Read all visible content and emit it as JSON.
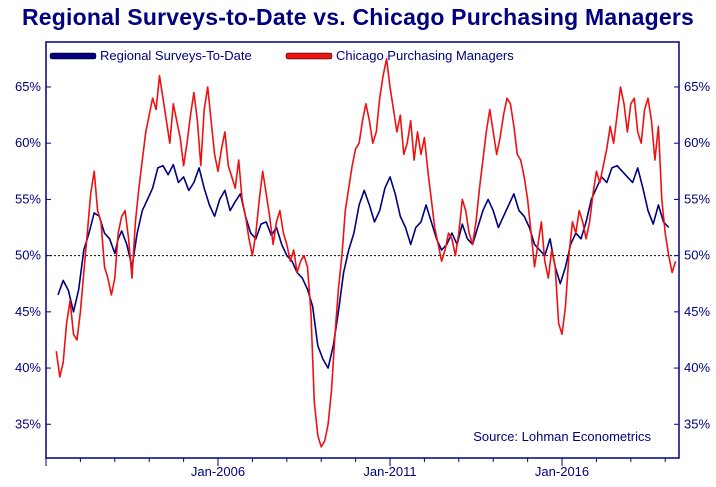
{
  "chart_data": {
    "type": "line",
    "title": "Regional Surveys-to-Date vs. Chicago Purchasing Managers",
    "source": "Source: Lohman Econometrics",
    "x_range": [
      2001.0,
      2019.4
    ],
    "ylim": [
      32,
      69
    ],
    "y_ticks": [
      35,
      40,
      45,
      50,
      55,
      60,
      65
    ],
    "y_tick_labels": [
      "35%",
      "40%",
      "45%",
      "50%",
      "55%",
      "60%",
      "65%"
    ],
    "x_ticks": [
      2006,
      2011,
      2016
    ],
    "x_tick_labels": [
      "Jan-2006",
      "Jan-2011",
      "Jan-2016"
    ],
    "reference_line": 50,
    "legend_position": "top-left",
    "colors": {
      "regional": "#000080",
      "chicago": "#ee1111",
      "axis": "#000080"
    },
    "series": [
      {
        "name": "Regional Surveys-To-Date",
        "color": "#000080",
        "points": [
          [
            2001.35,
            46.5
          ],
          [
            2001.5,
            47.8
          ],
          [
            2001.65,
            46.9
          ],
          [
            2001.8,
            45
          ],
          [
            2001.95,
            47
          ],
          [
            2002.1,
            50.5
          ],
          [
            2002.25,
            52
          ],
          [
            2002.4,
            53.8
          ],
          [
            2002.55,
            53.5
          ],
          [
            2002.7,
            52
          ],
          [
            2002.85,
            51.5
          ],
          [
            2003.0,
            50.2
          ],
          [
            2003.1,
            51.5
          ],
          [
            2003.2,
            52.2
          ],
          [
            2003.35,
            51
          ],
          [
            2003.5,
            49
          ],
          [
            2003.65,
            52
          ],
          [
            2003.8,
            54
          ],
          [
            2003.95,
            55
          ],
          [
            2004.1,
            56
          ],
          [
            2004.25,
            57.8
          ],
          [
            2004.4,
            58
          ],
          [
            2004.55,
            57.2
          ],
          [
            2004.7,
            58.1
          ],
          [
            2004.85,
            56.5
          ],
          [
            2005.0,
            57
          ],
          [
            2005.15,
            55.8
          ],
          [
            2005.3,
            56.5
          ],
          [
            2005.45,
            57.8
          ],
          [
            2005.6,
            56
          ],
          [
            2005.75,
            54.5
          ],
          [
            2005.9,
            53.5
          ],
          [
            2006.05,
            55
          ],
          [
            2006.2,
            55.8
          ],
          [
            2006.35,
            54
          ],
          [
            2006.5,
            54.8
          ],
          [
            2006.65,
            55.5
          ],
          [
            2006.8,
            53.5
          ],
          [
            2006.95,
            52
          ],
          [
            2007.1,
            51.5
          ],
          [
            2007.25,
            52.8
          ],
          [
            2007.4,
            53
          ],
          [
            2007.55,
            51.8
          ],
          [
            2007.7,
            52.5
          ],
          [
            2007.85,
            51
          ],
          [
            2008.0,
            50
          ],
          [
            2008.15,
            49.5
          ],
          [
            2008.3,
            48.5
          ],
          [
            2008.45,
            48
          ],
          [
            2008.6,
            47
          ],
          [
            2008.75,
            45.5
          ],
          [
            2008.9,
            42
          ],
          [
            2009.05,
            40.8
          ],
          [
            2009.2,
            40
          ],
          [
            2009.35,
            42
          ],
          [
            2009.5,
            45
          ],
          [
            2009.65,
            48.5
          ],
          [
            2009.8,
            50.5
          ],
          [
            2009.95,
            52
          ],
          [
            2010.1,
            54.5
          ],
          [
            2010.25,
            55.8
          ],
          [
            2010.4,
            54.5
          ],
          [
            2010.55,
            53
          ],
          [
            2010.7,
            54
          ],
          [
            2010.85,
            56
          ],
          [
            2011.0,
            57
          ],
          [
            2011.15,
            55.5
          ],
          [
            2011.3,
            53.5
          ],
          [
            2011.45,
            52.5
          ],
          [
            2011.6,
            51
          ],
          [
            2011.75,
            52.5
          ],
          [
            2011.9,
            53
          ],
          [
            2012.05,
            54.5
          ],
          [
            2012.2,
            53
          ],
          [
            2012.35,
            51.5
          ],
          [
            2012.5,
            50.5
          ],
          [
            2012.65,
            51
          ],
          [
            2012.8,
            52
          ],
          [
            2012.95,
            51
          ],
          [
            2013.1,
            52.8
          ],
          [
            2013.25,
            51.5
          ],
          [
            2013.4,
            51
          ],
          [
            2013.55,
            52.5
          ],
          [
            2013.7,
            54
          ],
          [
            2013.85,
            55
          ],
          [
            2014.0,
            54
          ],
          [
            2014.15,
            52.5
          ],
          [
            2014.3,
            53.5
          ],
          [
            2014.45,
            54.5
          ],
          [
            2014.6,
            55.5
          ],
          [
            2014.75,
            54
          ],
          [
            2014.9,
            53.5
          ],
          [
            2015.05,
            52.5
          ],
          [
            2015.2,
            51
          ],
          [
            2015.35,
            50.5
          ],
          [
            2015.5,
            50
          ],
          [
            2015.65,
            51.5
          ],
          [
            2015.8,
            49
          ],
          [
            2015.95,
            47.5
          ],
          [
            2016.1,
            49
          ],
          [
            2016.25,
            51
          ],
          [
            2016.4,
            52
          ],
          [
            2016.55,
            51.5
          ],
          [
            2016.7,
            53
          ],
          [
            2016.85,
            55
          ],
          [
            2017.0,
            56
          ],
          [
            2017.15,
            57
          ],
          [
            2017.3,
            56.5
          ],
          [
            2017.45,
            57.8
          ],
          [
            2017.6,
            58
          ],
          [
            2017.75,
            57.5
          ],
          [
            2017.9,
            57
          ],
          [
            2018.05,
            56.5
          ],
          [
            2018.2,
            57.8
          ],
          [
            2018.35,
            56
          ],
          [
            2018.5,
            54
          ],
          [
            2018.65,
            52.8
          ],
          [
            2018.8,
            54.5
          ],
          [
            2018.95,
            53
          ],
          [
            2019.1,
            52.5
          ]
        ]
      },
      {
        "name": "Chicago Purchasing Managers",
        "color": "#ee1111",
        "points": [
          [
            2001.3,
            41.5
          ],
          [
            2001.4,
            39.2
          ],
          [
            2001.5,
            40.5
          ],
          [
            2001.6,
            44
          ],
          [
            2001.7,
            46
          ],
          [
            2001.8,
            43
          ],
          [
            2001.9,
            42.5
          ],
          [
            2002.0,
            45
          ],
          [
            2002.1,
            48.5
          ],
          [
            2002.2,
            52
          ],
          [
            2002.3,
            55.5
          ],
          [
            2002.4,
            57.5
          ],
          [
            2002.5,
            54
          ],
          [
            2002.6,
            53
          ],
          [
            2002.7,
            49
          ],
          [
            2002.8,
            48
          ],
          [
            2002.9,
            46.5
          ],
          [
            2003.0,
            48
          ],
          [
            2003.1,
            52
          ],
          [
            2003.2,
            53.5
          ],
          [
            2003.3,
            54
          ],
          [
            2003.4,
            51.5
          ],
          [
            2003.5,
            48
          ],
          [
            2003.6,
            53
          ],
          [
            2003.7,
            56
          ],
          [
            2003.8,
            58.5
          ],
          [
            2003.9,
            61
          ],
          [
            2004.0,
            62.5
          ],
          [
            2004.1,
            64
          ],
          [
            2004.2,
            63
          ],
          [
            2004.3,
            66
          ],
          [
            2004.4,
            64
          ],
          [
            2004.5,
            62
          ],
          [
            2004.6,
            60
          ],
          [
            2004.7,
            63.5
          ],
          [
            2004.8,
            62
          ],
          [
            2004.9,
            60.5
          ],
          [
            2005.0,
            58
          ],
          [
            2005.1,
            60
          ],
          [
            2005.2,
            62.5
          ],
          [
            2005.3,
            64.5
          ],
          [
            2005.4,
            62
          ],
          [
            2005.5,
            58
          ],
          [
            2005.6,
            63
          ],
          [
            2005.7,
            65
          ],
          [
            2005.8,
            62
          ],
          [
            2005.9,
            59
          ],
          [
            2006.0,
            57.5
          ],
          [
            2006.1,
            59.5
          ],
          [
            2006.2,
            61
          ],
          [
            2006.3,
            58
          ],
          [
            2006.4,
            57
          ],
          [
            2006.5,
            56
          ],
          [
            2006.6,
            58.5
          ],
          [
            2006.7,
            55
          ],
          [
            2006.8,
            53.5
          ],
          [
            2006.9,
            51.5
          ],
          [
            2007.0,
            50
          ],
          [
            2007.1,
            52
          ],
          [
            2007.2,
            55
          ],
          [
            2007.3,
            57.5
          ],
          [
            2007.4,
            55.5
          ],
          [
            2007.5,
            53.5
          ],
          [
            2007.6,
            51
          ],
          [
            2007.7,
            53
          ],
          [
            2007.8,
            54
          ],
          [
            2007.9,
            52
          ],
          [
            2008.0,
            51
          ],
          [
            2008.1,
            49.5
          ],
          [
            2008.2,
            50.5
          ],
          [
            2008.3,
            48.5
          ],
          [
            2008.4,
            49.5
          ],
          [
            2008.5,
            50
          ],
          [
            2008.6,
            49
          ],
          [
            2008.7,
            45
          ],
          [
            2008.8,
            37
          ],
          [
            2008.9,
            34
          ],
          [
            2009.0,
            33
          ],
          [
            2009.1,
            33.5
          ],
          [
            2009.2,
            35
          ],
          [
            2009.3,
            38
          ],
          [
            2009.4,
            43
          ],
          [
            2009.5,
            47
          ],
          [
            2009.6,
            50
          ],
          [
            2009.7,
            54
          ],
          [
            2009.8,
            56
          ],
          [
            2009.9,
            58
          ],
          [
            2010.0,
            59.5
          ],
          [
            2010.1,
            60
          ],
          [
            2010.2,
            62
          ],
          [
            2010.3,
            63.5
          ],
          [
            2010.4,
            62
          ],
          [
            2010.5,
            60
          ],
          [
            2010.6,
            61
          ],
          [
            2010.7,
            64
          ],
          [
            2010.8,
            66
          ],
          [
            2010.9,
            67.5
          ],
          [
            2011.0,
            65
          ],
          [
            2011.1,
            63
          ],
          [
            2011.2,
            61
          ],
          [
            2011.3,
            62.5
          ],
          [
            2011.4,
            59
          ],
          [
            2011.5,
            60
          ],
          [
            2011.6,
            62
          ],
          [
            2011.7,
            58.5
          ],
          [
            2011.8,
            61
          ],
          [
            2011.9,
            59
          ],
          [
            2012.0,
            60.5
          ],
          [
            2012.1,
            57.5
          ],
          [
            2012.2,
            55
          ],
          [
            2012.3,
            52.5
          ],
          [
            2012.4,
            51
          ],
          [
            2012.5,
            49.5
          ],
          [
            2012.6,
            50.5
          ],
          [
            2012.7,
            52
          ],
          [
            2012.8,
            51.5
          ],
          [
            2012.9,
            50
          ],
          [
            2013.0,
            52
          ],
          [
            2013.1,
            55
          ],
          [
            2013.2,
            54
          ],
          [
            2013.3,
            52
          ],
          [
            2013.4,
            51
          ],
          [
            2013.5,
            53
          ],
          [
            2013.6,
            56
          ],
          [
            2013.7,
            58.5
          ],
          [
            2013.8,
            61
          ],
          [
            2013.9,
            63
          ],
          [
            2014.0,
            61
          ],
          [
            2014.1,
            59
          ],
          [
            2014.2,
            60.5
          ],
          [
            2014.3,
            62.5
          ],
          [
            2014.4,
            64
          ],
          [
            2014.5,
            63.5
          ],
          [
            2014.6,
            61.5
          ],
          [
            2014.7,
            59
          ],
          [
            2014.8,
            58.5
          ],
          [
            2014.9,
            57
          ],
          [
            2015.0,
            55
          ],
          [
            2015.1,
            52
          ],
          [
            2015.2,
            49
          ],
          [
            2015.3,
            51
          ],
          [
            2015.4,
            53
          ],
          [
            2015.5,
            49.5
          ],
          [
            2015.6,
            48
          ],
          [
            2015.7,
            50.5
          ],
          [
            2015.8,
            49
          ],
          [
            2015.9,
            44
          ],
          [
            2016.0,
            43
          ],
          [
            2016.1,
            45.5
          ],
          [
            2016.2,
            50
          ],
          [
            2016.3,
            53
          ],
          [
            2016.4,
            52
          ],
          [
            2016.5,
            54
          ],
          [
            2016.6,
            53
          ],
          [
            2016.7,
            51.5
          ],
          [
            2016.8,
            53
          ],
          [
            2016.9,
            55.5
          ],
          [
            2017.0,
            57.5
          ],
          [
            2017.1,
            56.5
          ],
          [
            2017.2,
            58
          ],
          [
            2017.3,
            59.5
          ],
          [
            2017.4,
            61.5
          ],
          [
            2017.5,
            60
          ],
          [
            2017.6,
            62.5
          ],
          [
            2017.7,
            65
          ],
          [
            2017.8,
            63.5
          ],
          [
            2017.9,
            61
          ],
          [
            2018.0,
            63.5
          ],
          [
            2018.1,
            64
          ],
          [
            2018.2,
            61
          ],
          [
            2018.3,
            60
          ],
          [
            2018.4,
            63
          ],
          [
            2018.5,
            64
          ],
          [
            2018.6,
            62
          ],
          [
            2018.7,
            58.5
          ],
          [
            2018.8,
            61.5
          ],
          [
            2018.9,
            55
          ],
          [
            2019.0,
            52
          ],
          [
            2019.1,
            50
          ],
          [
            2019.2,
            48.5
          ],
          [
            2019.3,
            49.5
          ]
        ]
      }
    ]
  }
}
